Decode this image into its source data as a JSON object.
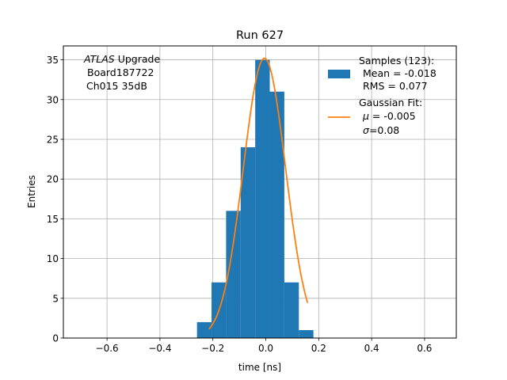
{
  "chart_data": {
    "type": "bar",
    "title": "Run 627",
    "xlabel": "time [ns]",
    "ylabel": "Entries",
    "xlim": [
      -0.765,
      0.72
    ],
    "ylim": [
      0,
      36.75
    ],
    "xticks": [
      -0.6,
      -0.4,
      -0.2,
      0.0,
      0.2,
      0.4,
      0.6
    ],
    "xtick_labels": [
      "−0.6",
      "−0.4",
      "−0.2",
      "0.0",
      "0.2",
      "0.4",
      "0.6"
    ],
    "yticks": [
      0,
      5,
      10,
      15,
      20,
      25,
      30,
      35
    ],
    "grid": true,
    "histogram": {
      "bin_edges": [
        -0.26,
        -0.205,
        -0.15,
        -0.095,
        -0.04,
        0.015,
        0.07,
        0.125,
        0.18
      ],
      "counts": [
        2,
        7,
        16,
        24,
        35,
        31,
        7,
        1
      ],
      "color": "#1f77b4"
    },
    "fit": {
      "mu": -0.005,
      "sigma": 0.08,
      "amplitude": 35.2,
      "x_range": [
        -0.215,
        0.158
      ],
      "color": "#ff7f0e"
    },
    "annotation": {
      "line1_italic": "ATLAS",
      "line1_rest": " Upgrade",
      "line2": "Board187722",
      "line3": "Ch015 35dB"
    },
    "legend": {
      "position": "top-right",
      "samples_title": "Samples (123):",
      "samples_mean": "Mean = -0.018",
      "samples_rms": "RMS = 0.077",
      "fit_title": "Gaussian Fit:",
      "fit_mu_symbol": "μ",
      "fit_mu_value": " = -0.005",
      "fit_sigma_symbol": "σ",
      "fit_sigma_value": "=0.08"
    }
  }
}
